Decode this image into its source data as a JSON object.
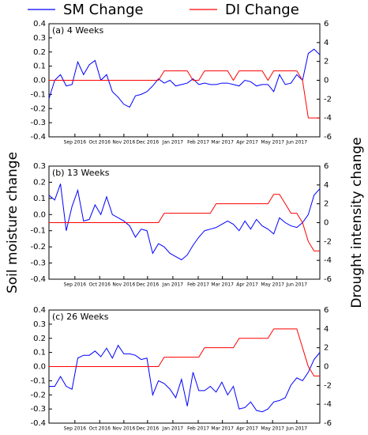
{
  "chart_data": [
    {
      "type": "line",
      "title": "(a) 4 Weeks",
      "x": [
        0,
        1,
        2,
        3,
        4,
        5,
        6,
        7,
        8,
        9,
        10,
        11,
        12,
        13,
        14,
        15,
        16,
        17,
        18,
        19,
        20,
        21,
        22,
        23,
        24,
        25,
        26,
        27,
        28,
        29,
        30,
        31,
        32,
        33,
        34,
        35,
        36,
        37,
        38,
        39,
        40,
        41,
        42,
        43,
        44,
        45,
        46,
        47
      ],
      "xlim": [
        0,
        47
      ],
      "xticks": [
        {
          "value": 4.5,
          "label": "Sep 2016"
        },
        {
          "value": 8.8,
          "label": "Oct 2016"
        },
        {
          "value": 13.0,
          "label": "Nov 2016"
        },
        {
          "value": 17.1,
          "label": "Dec 2016"
        },
        {
          "value": 21.5,
          "label": "Jan 2017"
        },
        {
          "value": 25.9,
          "label": "Feb 2017"
        },
        {
          "value": 30.1,
          "label": "Mar 2017"
        },
        {
          "value": 34.4,
          "label": "Apr 2017"
        },
        {
          "value": 38.8,
          "label": "May 2017"
        },
        {
          "value": 43.0,
          "label": "Jun 2017"
        }
      ],
      "ylim": [
        -0.4,
        0.4
      ],
      "yticks": [
        -0.4,
        -0.3,
        -0.2,
        -0.1,
        {
          "value": 0,
          "label": "0.0"
        },
        0.1,
        0.2,
        0.3,
        0.4
      ],
      "y2lim": [
        -6,
        6
      ],
      "y2ticks": [
        -6,
        -4,
        -2,
        0,
        2,
        4,
        6
      ],
      "series": [
        {
          "name": "SM Change",
          "color": "#0000ff",
          "values": [
            -0.13,
            0.0,
            0.04,
            -0.04,
            -0.03,
            0.13,
            0.04,
            0.11,
            0.14,
            0.0,
            0.04,
            -0.08,
            -0.12,
            -0.17,
            -0.19,
            -0.11,
            -0.1,
            -0.08,
            -0.04,
            0.01,
            -0.02,
            0.0,
            -0.04,
            -0.03,
            -0.02,
            0.01,
            -0.03,
            -0.02,
            -0.03,
            -0.03,
            -0.02,
            -0.02,
            -0.03,
            -0.04,
            0.0,
            -0.01,
            -0.04,
            -0.03,
            -0.03,
            -0.08,
            0.04,
            -0.03,
            -0.02,
            0.04,
            0.0,
            0.19,
            0.22,
            0.18
          ]
        },
        {
          "name": "DI Change",
          "color": "#ff0000",
          "axis": "y2",
          "values": [
            0,
            0,
            0,
            0,
            0,
            0,
            0,
            0,
            0,
            0,
            0,
            0,
            0,
            0,
            0,
            0,
            0,
            0,
            0,
            0,
            1,
            1,
            1,
            1,
            1,
            0,
            0,
            1,
            1,
            1,
            1,
            1,
            0,
            1,
            1,
            1,
            1,
            1,
            0,
            1,
            1,
            1,
            1,
            1,
            0,
            -4,
            -4,
            -4
          ]
        }
      ]
    },
    {
      "type": "line",
      "title": "(b) 13 Weeks",
      "ylabel": "Soil moisture change",
      "y2label": "Drought intensity change",
      "x": [
        0,
        1,
        2,
        3,
        4,
        5,
        6,
        7,
        8,
        9,
        10,
        11,
        12,
        13,
        14,
        15,
        16,
        17,
        18,
        19,
        20,
        21,
        22,
        23,
        24,
        25,
        26,
        27,
        28,
        29,
        30,
        31,
        32,
        33,
        34,
        35,
        36,
        37,
        38,
        39,
        40,
        41,
        42,
        43,
        44,
        45,
        46,
        47
      ],
      "xlim": [
        0,
        47
      ],
      "xticks": [
        {
          "value": 4.5,
          "label": "Sep 2016"
        },
        {
          "value": 8.8,
          "label": "Oct 2016"
        },
        {
          "value": 13.0,
          "label": "Nov 2016"
        },
        {
          "value": 17.1,
          "label": "Dec 2016"
        },
        {
          "value": 21.5,
          "label": "Jan 2017"
        },
        {
          "value": 25.9,
          "label": "Feb 2017"
        },
        {
          "value": 30.1,
          "label": "Mar 2017"
        },
        {
          "value": 34.4,
          "label": "Apr 2017"
        },
        {
          "value": 38.8,
          "label": "May 2017"
        },
        {
          "value": 43.0,
          "label": "Jun 2017"
        }
      ],
      "ylim": [
        -0.4,
        0.3
      ],
      "yticks": [
        -0.4,
        -0.3,
        -0.2,
        -0.1,
        {
          "value": 0,
          "label": "0.0"
        },
        0.1,
        0.2,
        0.3
      ],
      "y2lim": [
        -6,
        6
      ],
      "y2ticks": [
        -6,
        -4,
        -2,
        0,
        2,
        4,
        6
      ],
      "series": [
        {
          "color": "#0000ff",
          "values": [
            0.12,
            0.09,
            0.19,
            -0.1,
            0.05,
            0.15,
            -0.04,
            -0.03,
            0.06,
            0.0,
            0.11,
            0.0,
            -0.02,
            -0.04,
            -0.07,
            -0.14,
            -0.09,
            -0.1,
            -0.24,
            -0.18,
            -0.2,
            -0.24,
            -0.26,
            -0.28,
            -0.25,
            -0.19,
            -0.14,
            -0.1,
            -0.09,
            -0.08,
            -0.06,
            -0.04,
            -0.06,
            -0.1,
            -0.04,
            -0.09,
            -0.03,
            -0.07,
            -0.09,
            -0.12,
            -0.02,
            -0.05,
            -0.07,
            -0.08,
            -0.05,
            0.0,
            0.12,
            0.16
          ]
        },
        {
          "color": "#ff0000",
          "axis": "y2",
          "values": [
            0,
            0,
            0,
            0,
            0,
            0,
            0,
            0,
            0,
            0,
            0,
            0,
            0,
            0,
            0,
            0,
            0,
            0,
            0,
            0,
            1,
            1,
            1,
            1,
            1,
            1,
            1,
            1,
            1,
            2,
            2,
            2,
            2,
            2,
            2,
            2,
            2,
            2,
            2,
            3,
            3,
            2,
            1,
            1,
            0,
            -2,
            -3,
            -3
          ]
        }
      ]
    },
    {
      "type": "line",
      "title": "(c) 26 Weeks",
      "x": [
        0,
        1,
        2,
        3,
        4,
        5,
        6,
        7,
        8,
        9,
        10,
        11,
        12,
        13,
        14,
        15,
        16,
        17,
        18,
        19,
        20,
        21,
        22,
        23,
        24,
        25,
        26,
        27,
        28,
        29,
        30,
        31,
        32,
        33,
        34,
        35,
        36,
        37,
        38,
        39,
        40,
        41,
        42,
        43,
        44,
        45,
        46,
        47
      ],
      "xlim": [
        0,
        47
      ],
      "xticks": [
        {
          "value": 4.5,
          "label": "Sep 2016"
        },
        {
          "value": 8.8,
          "label": "Oct 2016"
        },
        {
          "value": 13.0,
          "label": "Nov 2016"
        },
        {
          "value": 17.1,
          "label": "Dec 2016"
        },
        {
          "value": 21.5,
          "label": "Jan 2017"
        },
        {
          "value": 25.9,
          "label": "Feb 2017"
        },
        {
          "value": 30.1,
          "label": "Mar 2017"
        },
        {
          "value": 34.4,
          "label": "Apr 2017"
        },
        {
          "value": 38.8,
          "label": "May 2017"
        },
        {
          "value": 43.0,
          "label": "Jun 2017"
        }
      ],
      "ylim": [
        -0.4,
        0.4
      ],
      "yticks": [
        -0.4,
        -0.3,
        -0.2,
        -0.1,
        {
          "value": 0,
          "label": "0.0"
        },
        0.1,
        0.2,
        0.3,
        0.4
      ],
      "y2lim": [
        -6,
        6
      ],
      "y2ticks": [
        -6,
        -4,
        -2,
        0,
        2,
        4,
        6
      ],
      "series": [
        {
          "color": "#0000ff",
          "values": [
            -0.14,
            -0.14,
            -0.07,
            -0.14,
            -0.16,
            0.06,
            0.08,
            0.08,
            0.11,
            0.07,
            0.13,
            0.06,
            0.15,
            0.09,
            0.09,
            0.08,
            0.05,
            0.06,
            -0.2,
            -0.1,
            -0.12,
            -0.16,
            -0.22,
            -0.09,
            -0.28,
            -0.04,
            -0.17,
            -0.17,
            -0.14,
            -0.18,
            -0.11,
            -0.2,
            -0.14,
            -0.3,
            -0.29,
            -0.25,
            -0.31,
            -0.32,
            -0.3,
            -0.25,
            -0.24,
            -0.22,
            -0.13,
            -0.08,
            -0.1,
            -0.04,
            0.05,
            0.1
          ]
        },
        {
          "color": "#ff0000",
          "axis": "y2",
          "values": [
            0,
            0,
            0,
            0,
            0,
            0,
            0,
            0,
            0,
            0,
            0,
            0,
            0,
            0,
            0,
            0,
            0,
            0,
            0,
            0,
            1,
            1,
            1,
            1,
            1,
            1,
            1,
            2,
            2,
            2,
            2,
            2,
            2,
            3,
            3,
            3,
            3,
            3,
            3,
            4,
            4,
            4,
            4,
            4,
            2,
            0,
            -1,
            -1
          ]
        }
      ]
    }
  ]
}
